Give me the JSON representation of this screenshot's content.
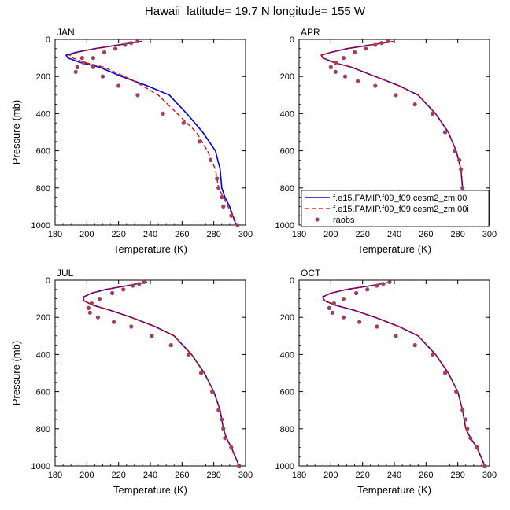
{
  "title": "Hawaii  latitude= 19.7 N longitude= 155 W",
  "colors": {
    "model_00": "#0000dd",
    "model_00i": "#dd0000",
    "raobs": "#a0405a"
  },
  "legend": {
    "placement": "lower-right of APR panel",
    "entries": [
      {
        "label": "f.e15.FAMIP.f09_f09.cesm2_zm.00",
        "style": "solid"
      },
      {
        "label": "f.e15.FAMIP.f09_f09.cesm2_zm.00i",
        "style": "dashed"
      },
      {
        "label": "raobs",
        "style": "marker"
      }
    ]
  },
  "chart_data": [
    {
      "type": "line",
      "panel": "JAN",
      "xlabel": "Temperature (K)",
      "ylabel": "Pressure (mb)",
      "xlim": [
        180,
        300
      ],
      "ylim": [
        1000,
        0
      ],
      "xticks": [
        180,
        200,
        220,
        240,
        260,
        280,
        300
      ],
      "yticks": [
        0,
        200,
        400,
        600,
        800,
        1000
      ],
      "grid": false,
      "series": [
        {
          "name": "f.e15.FAMIP.f09_f09.cesm2_zm.00",
          "x": [
            235,
            220,
            205,
            193,
            187,
            188,
            196,
            208,
            222,
            238,
            252,
            263,
            273,
            281,
            284,
            285,
            287,
            290,
            294
          ],
          "y": [
            10,
            30,
            50,
            70,
            85,
            100,
            125,
            150,
            200,
            250,
            300,
            400,
            500,
            600,
            700,
            800,
            850,
            900,
            1000
          ]
        },
        {
          "name": "f.e15.FAMIP.f09_f09.cesm2_zm.00i",
          "x": [
            235,
            220,
            205,
            194,
            189,
            191,
            199,
            211,
            230,
            245,
            257,
            269,
            276,
            281,
            283,
            286,
            289,
            292,
            295
          ],
          "y": [
            10,
            30,
            50,
            70,
            85,
            100,
            125,
            150,
            225,
            300,
            400,
            500,
            600,
            700,
            800,
            850,
            900,
            950,
            1000
          ]
        },
        {
          "name": "raobs",
          "x": [
            232,
            228,
            224,
            218,
            211,
            204,
            198,
            194,
            193,
            197,
            204,
            210,
            220,
            232,
            248,
            261,
            271,
            278,
            282,
            283,
            285,
            286,
            291,
            295
          ],
          "y": [
            10,
            20,
            30,
            50,
            70,
            100,
            125,
            150,
            175,
            100,
            150,
            200,
            250,
            300,
            400,
            450,
            550,
            650,
            750,
            800,
            850,
            900,
            950,
            1000
          ]
        }
      ]
    },
    {
      "type": "line",
      "panel": "APR",
      "xlabel": "Temperature (K)",
      "ylabel": "",
      "xlim": [
        180,
        300
      ],
      "ylim": [
        1000,
        0
      ],
      "xticks": [
        180,
        200,
        220,
        240,
        260,
        280,
        300
      ],
      "yticks": [
        0,
        200,
        400,
        600,
        800,
        1000
      ],
      "grid": false,
      "series": [
        {
          "name": "f.e15.FAMIP.f09_f09.cesm2_zm.00",
          "x": [
            240,
            225,
            210,
            200,
            194,
            195,
            202,
            213,
            228,
            243,
            255,
            266,
            274,
            279,
            282,
            283,
            285,
            289,
            294
          ],
          "y": [
            10,
            30,
            50,
            70,
            85,
            100,
            125,
            150,
            200,
            250,
            300,
            400,
            500,
            600,
            700,
            800,
            850,
            900,
            1000
          ]
        },
        {
          "name": "f.e15.FAMIP.f09_f09.cesm2_zm.00i",
          "x": [
            240,
            225,
            210,
            200,
            194,
            195,
            202,
            213,
            228,
            243,
            255,
            266,
            274,
            279,
            282,
            283,
            285,
            289,
            294
          ],
          "y": [
            10,
            30,
            50,
            70,
            85,
            100,
            125,
            150,
            200,
            250,
            300,
            400,
            500,
            600,
            700,
            800,
            850,
            900,
            1000
          ]
        },
        {
          "name": "raobs",
          "x": [
            236,
            232,
            228,
            222,
            215,
            208,
            203,
            200,
            203,
            209,
            217,
            228,
            241,
            253,
            264,
            272,
            278,
            281,
            282,
            283,
            284,
            286,
            290,
            294
          ],
          "y": [
            10,
            20,
            30,
            50,
            70,
            100,
            125,
            150,
            175,
            200,
            225,
            250,
            300,
            350,
            400,
            500,
            600,
            650,
            700,
            800,
            850,
            900,
            950,
            1000
          ]
        }
      ]
    },
    {
      "type": "line",
      "panel": "JUL",
      "xlabel": "Temperature (K)",
      "ylabel": "Pressure (mb)",
      "xlim": [
        180,
        300
      ],
      "ylim": [
        1000,
        0
      ],
      "xticks": [
        180,
        200,
        220,
        240,
        260,
        280,
        300
      ],
      "yticks": [
        0,
        200,
        400,
        600,
        800,
        1000
      ],
      "grid": false,
      "series": [
        {
          "name": "f.e15.FAMIP.f09_f09.cesm2_zm.00",
          "x": [
            238,
            225,
            212,
            203,
            198,
            198,
            204,
            214,
            228,
            243,
            255,
            266,
            274,
            280,
            284,
            286,
            288,
            291,
            296
          ],
          "y": [
            10,
            30,
            50,
            70,
            90,
            110,
            135,
            160,
            200,
            250,
            300,
            400,
            500,
            600,
            700,
            800,
            850,
            900,
            1000
          ]
        },
        {
          "name": "f.e15.FAMIP.f09_f09.cesm2_zm.00i",
          "x": [
            238,
            225,
            212,
            203,
            198,
            198,
            204,
            214,
            228,
            243,
            255,
            266,
            274,
            280,
            284,
            286,
            288,
            291,
            296
          ],
          "y": [
            10,
            30,
            50,
            70,
            90,
            110,
            135,
            160,
            200,
            250,
            300,
            400,
            500,
            600,
            700,
            800,
            850,
            900,
            1000
          ]
        },
        {
          "name": "raobs",
          "x": [
            236,
            233,
            229,
            223,
            216,
            208,
            203,
            201,
            202,
            207,
            217,
            228,
            241,
            253,
            264,
            272,
            279,
            283,
            285,
            286,
            287,
            291,
            296
          ],
          "y": [
            10,
            20,
            30,
            50,
            70,
            100,
            125,
            150,
            175,
            200,
            225,
            250,
            300,
            350,
            400,
            500,
            600,
            700,
            750,
            800,
            850,
            900,
            1000
          ]
        }
      ]
    },
    {
      "type": "line",
      "panel": "OCT",
      "xlabel": "Temperature (K)",
      "ylabel": "",
      "xlim": [
        180,
        300
      ],
      "ylim": [
        1000,
        0
      ],
      "xticks": [
        180,
        200,
        220,
        240,
        260,
        280,
        300
      ],
      "yticks": [
        0,
        200,
        400,
        600,
        800,
        1000
      ],
      "grid": false,
      "series": [
        {
          "name": "f.e15.FAMIP.f09_f09.cesm2_zm.00",
          "x": [
            238,
            225,
            210,
            200,
            195,
            196,
            203,
            214,
            228,
            243,
            255,
            266,
            274,
            280,
            283,
            285,
            288,
            292,
            297
          ],
          "y": [
            10,
            30,
            50,
            70,
            90,
            110,
            135,
            160,
            200,
            250,
            300,
            400,
            500,
            600,
            700,
            800,
            850,
            900,
            1000
          ]
        },
        {
          "name": "f.e15.FAMIP.f09_f09.cesm2_zm.00i",
          "x": [
            238,
            225,
            210,
            200,
            195,
            196,
            203,
            214,
            228,
            243,
            255,
            266,
            274,
            280,
            283,
            285,
            288,
            292,
            297
          ],
          "y": [
            10,
            30,
            50,
            70,
            90,
            110,
            135,
            160,
            200,
            250,
            300,
            400,
            500,
            600,
            700,
            800,
            850,
            900,
            1000
          ]
        },
        {
          "name": "raobs",
          "x": [
            237,
            233,
            229,
            223,
            216,
            208,
            202,
            199,
            201,
            208,
            218,
            229,
            241,
            253,
            264,
            272,
            279,
            283,
            285,
            286,
            288,
            292,
            297
          ],
          "y": [
            10,
            20,
            30,
            50,
            70,
            100,
            125,
            150,
            175,
            200,
            225,
            250,
            300,
            350,
            400,
            500,
            600,
            700,
            750,
            800,
            850,
            900,
            1000
          ]
        }
      ]
    }
  ]
}
